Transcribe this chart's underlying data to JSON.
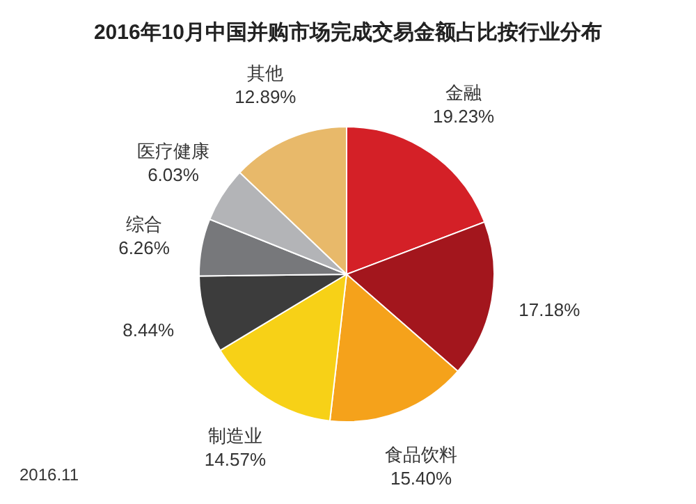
{
  "chart_data": {
    "type": "pie",
    "title": "2016年10月中国并购市场完成交易金额占比按行业分布",
    "categories": [
      "金融",
      null,
      "食品饮料",
      "制造业",
      null,
      "综合",
      "医疗健康",
      "其他"
    ],
    "values": [
      19.23,
      17.18,
      15.4,
      14.57,
      8.44,
      6.26,
      6.03,
      12.89
    ],
    "value_labels": [
      "19.23%",
      "17.18%",
      "15.40%",
      "14.57%",
      "8.44%",
      "6.26%",
      "6.03%",
      "12.89%"
    ],
    "colors": [
      "#d42027",
      "#a3161d",
      "#f5a21b",
      "#f7d117",
      "#3c3c3c",
      "#77787b",
      "#b3b4b7",
      "#e8b96a"
    ],
    "annotations": [
      "2016.11"
    ]
  }
}
